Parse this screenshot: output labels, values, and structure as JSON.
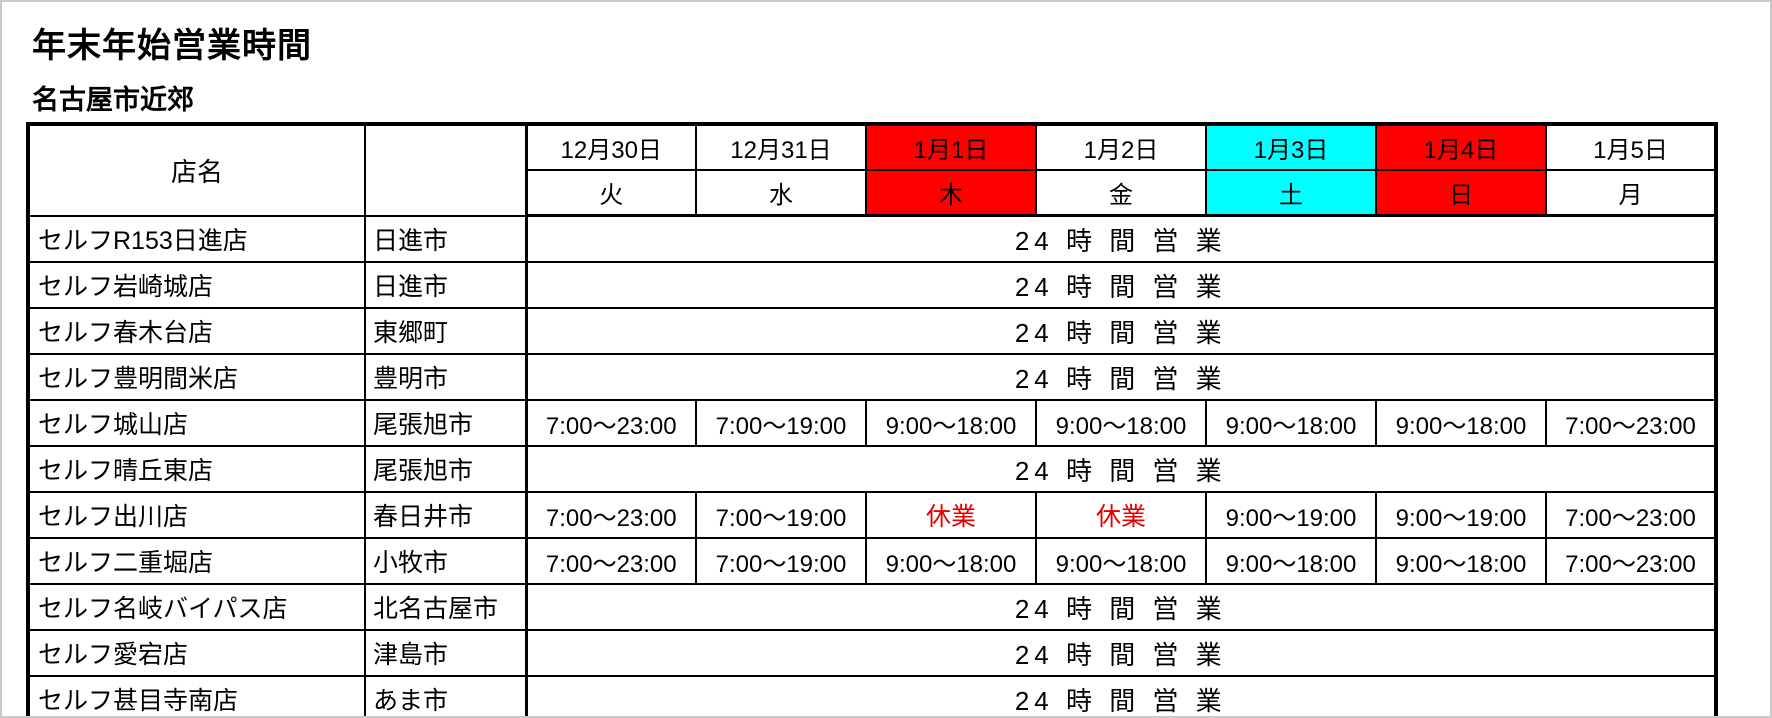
{
  "page": {
    "title": "年末年始営業時間",
    "subtitle": "名古屋市近郊"
  },
  "table": {
    "store_header": "店名",
    "columns": [
      {
        "date": "12月30日",
        "weekday": "火",
        "highlight": "none"
      },
      {
        "date": "12月31日",
        "weekday": "水",
        "highlight": "none"
      },
      {
        "date": "1月1日",
        "weekday": "木",
        "highlight": "red"
      },
      {
        "date": "1月2日",
        "weekday": "金",
        "highlight": "none"
      },
      {
        "date": "1月3日",
        "weekday": "土",
        "highlight": "cyan"
      },
      {
        "date": "1月4日",
        "weekday": "日",
        "highlight": "red"
      },
      {
        "date": "1月5日",
        "weekday": "月",
        "highlight": "none"
      }
    ],
    "all_day_label": "24 時 間 営 業",
    "closed_label": "休業",
    "rows": [
      {
        "store": "セルフR153日進店",
        "city": "日進市",
        "type": "allday"
      },
      {
        "store": "セルフ岩崎城店",
        "city": "日進市",
        "type": "allday"
      },
      {
        "store": "セルフ春木台店",
        "city": "東郷町",
        "type": "allday"
      },
      {
        "store": "セルフ豊明間米店",
        "city": "豊明市",
        "type": "allday"
      },
      {
        "store": "セルフ城山店",
        "city": "尾張旭市",
        "type": "hours",
        "hours": [
          "7:00～23:00",
          "7:00～19:00",
          "9:00～18:00",
          "9:00～18:00",
          "9:00～18:00",
          "9:00～18:00",
          "7:00～23:00"
        ]
      },
      {
        "store": "セルフ晴丘東店",
        "city": "尾張旭市",
        "type": "allday"
      },
      {
        "store": "セルフ出川店",
        "city": "春日井市",
        "type": "hours",
        "hours": [
          "7:00～23:00",
          "7:00～19:00",
          "休業",
          "休業",
          "9:00～19:00",
          "9:00～19:00",
          "7:00～23:00"
        ]
      },
      {
        "store": "セルフ二重堀店",
        "city": "小牧市",
        "type": "hours",
        "hours": [
          "7:00～23:00",
          "7:00～19:00",
          "9:00～18:00",
          "9:00～18:00",
          "9:00～18:00",
          "9:00～18:00",
          "7:00～23:00"
        ]
      },
      {
        "store": "セルフ名岐バイパス店",
        "city": "北名古屋市",
        "type": "allday"
      },
      {
        "store": "セルフ愛宕店",
        "city": "津島市",
        "type": "allday"
      },
      {
        "store": "セルフ甚目寺南店",
        "city": "あま市",
        "type": "allday"
      }
    ],
    "colors": {
      "holiday_red": "#ff0000",
      "saturday_cyan": "#00ffff",
      "closed_text": "#e60000"
    }
  }
}
